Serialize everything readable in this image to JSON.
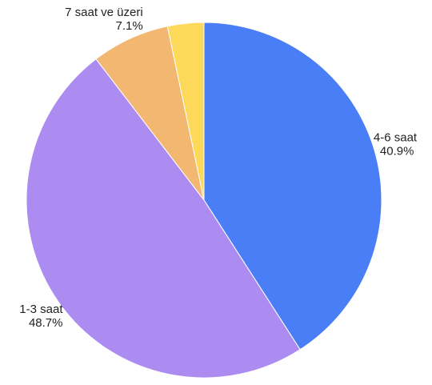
{
  "chart_data": {
    "type": "pie",
    "title": "",
    "start_angle_deg": 0,
    "direction": "clockwise",
    "slices": [
      {
        "name": "4-6 saat",
        "value": 40.9,
        "value_label": "40.9%",
        "color": "#4a7ef6"
      },
      {
        "name": "1-3 saat",
        "value": 48.7,
        "value_label": "48.7%",
        "color": "#ad8cf2"
      },
      {
        "name": "7 saat ve üzeri",
        "value": 7.1,
        "value_label": "7.1%",
        "color": "#f2b872"
      },
      {
        "name": "",
        "value": 3.3,
        "value_label": "",
        "color": "#fdd95a"
      }
    ],
    "legend": "none"
  }
}
